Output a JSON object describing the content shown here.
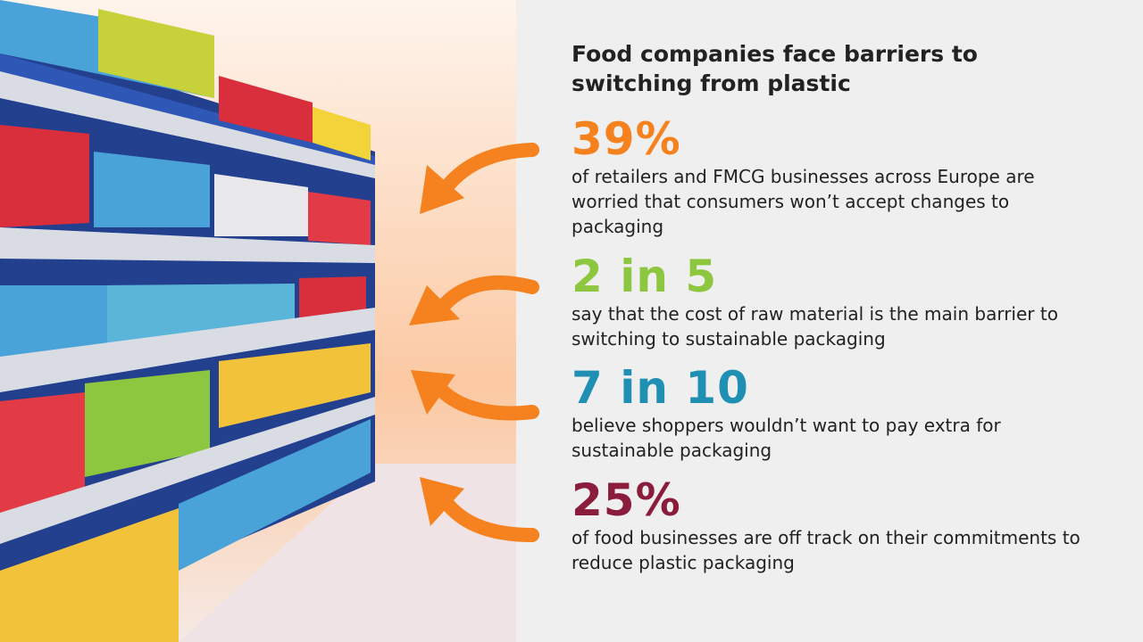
{
  "header": {
    "title": "Food companies face barriers to switching from plastic"
  },
  "stats": [
    {
      "figure": "39%",
      "text": "of retailers and FMCG businesses across Europe are worried that consumers won’t accept changes to packaging",
      "color": "#f5821f"
    },
    {
      "figure": "2 in 5",
      "text": "say that the cost of raw material is the main barrier to switching to sustainable packaging",
      "color": "#8dc63f"
    },
    {
      "figure": "7 in 10",
      "text": "believe shoppers wouldn’t want to pay extra for sustainable packaging",
      "color": "#1f8fb3"
    },
    {
      "figure": "25%",
      "text": "of food businesses are off track on their commitments to reduce plastic packaging",
      "color": "#8a1c3c"
    }
  ]
}
